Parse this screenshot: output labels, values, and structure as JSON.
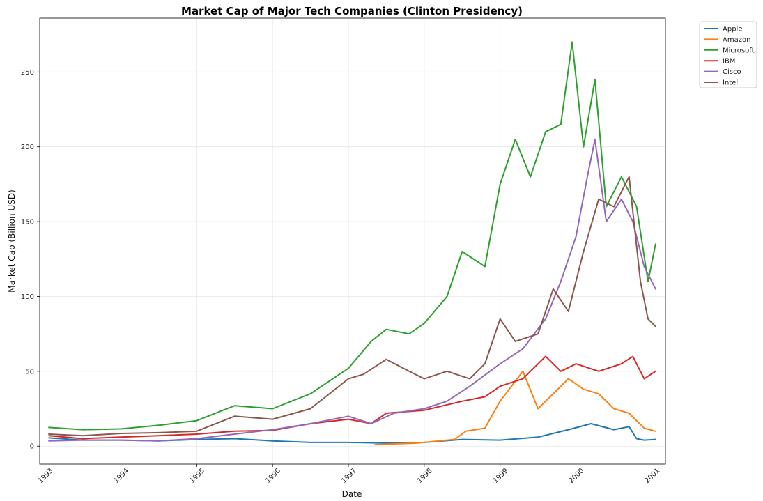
{
  "chart_data": {
    "type": "line",
    "title": "Market Cap of Major Tech Companies (Clinton Presidency)",
    "xlabel": "Date",
    "ylabel": "Market Cap (Billion USD)",
    "xlim": [
      1992.93,
      2001.18
    ],
    "ylim": [
      -12,
      286
    ],
    "x_ticks": [
      1993,
      1994,
      1995,
      1996,
      1997,
      1998,
      1999,
      2000,
      2001
    ],
    "y_ticks": [
      0,
      50,
      100,
      150,
      200,
      250
    ],
    "grid": true,
    "legend_position": "outside-top-right",
    "series": [
      {
        "name": "Apple",
        "color": "#1f77b4",
        "x": [
          1993.05,
          1993.5,
          1994.0,
          1994.5,
          1995.0,
          1995.5,
          1996.0,
          1996.5,
          1997.0,
          1997.5,
          1998.0,
          1998.5,
          1999.0,
          1999.5,
          1999.9,
          2000.2,
          2000.5,
          2000.7,
          2000.8,
          2000.9,
          2001.05
        ],
        "values": [
          5.5,
          4.0,
          4.0,
          3.5,
          4.5,
          5.0,
          3.5,
          2.5,
          2.5,
          2.0,
          2.5,
          4.5,
          4.0,
          6.0,
          11.0,
          15.0,
          11.0,
          13.0,
          5.0,
          4.0,
          4.5
        ]
      },
      {
        "name": "Amazon",
        "color": "#ff7f0e",
        "x": [
          1997.35,
          1997.6,
          1997.9,
          1998.2,
          1998.4,
          1998.55,
          1998.8,
          1999.0,
          1999.15,
          1999.3,
          1999.5,
          1999.7,
          1999.9,
          2000.1,
          2000.3,
          2000.5,
          2000.7,
          2000.9,
          2001.05
        ],
        "values": [
          1.0,
          1.5,
          2.0,
          3.5,
          4.5,
          10.0,
          12.0,
          30.0,
          40.0,
          50.0,
          25.0,
          35.0,
          45.0,
          38.0,
          35.0,
          25.0,
          22.0,
          12.0,
          10.0
        ]
      },
      {
        "name": "Microsoft",
        "color": "#2ca02c",
        "x": [
          1993.05,
          1993.5,
          1994.0,
          1994.5,
          1995.0,
          1995.5,
          1996.0,
          1996.5,
          1997.0,
          1997.3,
          1997.5,
          1997.8,
          1998.0,
          1998.3,
          1998.5,
          1998.8,
          1999.0,
          1999.2,
          1999.4,
          1999.6,
          1999.8,
          1999.95,
          2000.1,
          2000.25,
          2000.4,
          2000.6,
          2000.8,
          2000.95,
          2001.05
        ],
        "values": [
          12.5,
          11.0,
          11.5,
          14.0,
          17.0,
          27.0,
          25.0,
          35.0,
          52.0,
          70.0,
          78.0,
          75.0,
          82.0,
          100.0,
          130.0,
          120.0,
          175.0,
          205.0,
          180.0,
          210.0,
          215.0,
          270.0,
          200.0,
          245.0,
          160.0,
          180.0,
          160.0,
          110.0,
          135.0
        ]
      },
      {
        "name": "IBM",
        "color": "#d62728",
        "x": [
          1993.05,
          1993.5,
          1994.0,
          1994.5,
          1995.0,
          1995.5,
          1996.0,
          1996.5,
          1997.0,
          1997.3,
          1997.5,
          1998.0,
          1998.5,
          1998.8,
          1999.0,
          1999.3,
          1999.6,
          1999.8,
          2000.0,
          2000.3,
          2000.6,
          2000.75,
          2000.9,
          2001.05
        ],
        "values": [
          7.0,
          5.0,
          6.0,
          7.0,
          8.0,
          10.0,
          10.5,
          15.0,
          18.0,
          15.0,
          22.0,
          24.0,
          30.0,
          33.0,
          40.0,
          45.0,
          60.0,
          50.0,
          55.0,
          50.0,
          55.0,
          60.0,
          45.0,
          50.0
        ]
      },
      {
        "name": "Cisco",
        "color": "#9467bd",
        "x": [
          1993.05,
          1993.5,
          1994.0,
          1994.5,
          1995.0,
          1995.5,
          1996.0,
          1996.5,
          1997.0,
          1997.3,
          1997.6,
          1998.0,
          1998.3,
          1998.6,
          1999.0,
          1999.3,
          1999.6,
          1999.8,
          2000.0,
          2000.15,
          2000.25,
          2000.4,
          2000.6,
          2000.75,
          2000.9,
          2001.05
        ],
        "values": [
          3.5,
          4.0,
          4.0,
          3.5,
          5.0,
          8.0,
          11.0,
          15.0,
          20.0,
          15.0,
          22.0,
          25.0,
          30.0,
          40.0,
          55.0,
          65.0,
          85.0,
          110.0,
          140.0,
          180.0,
          205.0,
          150.0,
          165.0,
          150.0,
          120.0,
          105.0
        ]
      },
      {
        "name": "Intel",
        "color": "#8c564b",
        "x": [
          1993.05,
          1993.5,
          1994.0,
          1994.5,
          1995.0,
          1995.5,
          1996.0,
          1996.5,
          1997.0,
          1997.2,
          1997.5,
          1997.8,
          1998.0,
          1998.3,
          1998.6,
          1998.8,
          1999.0,
          1999.2,
          1999.5,
          1999.7,
          1999.9,
          2000.1,
          2000.3,
          2000.5,
          2000.7,
          2000.85,
          2000.95,
          2001.05
        ],
        "values": [
          8.0,
          7.0,
          8.5,
          9.0,
          10.0,
          20.0,
          18.0,
          25.0,
          45.0,
          48.0,
          58.0,
          50.0,
          45.0,
          50.0,
          45.0,
          55.0,
          85.0,
          70.0,
          75.0,
          105.0,
          90.0,
          130.0,
          165.0,
          160.0,
          180.0,
          110.0,
          85.0,
          80.0
        ]
      }
    ]
  }
}
